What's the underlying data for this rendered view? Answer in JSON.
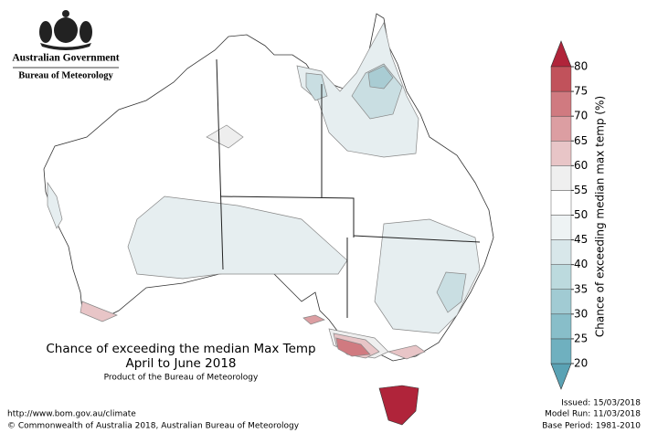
{
  "header": {
    "government": "Australian Government",
    "agency": "Bureau of Meteorology"
  },
  "map": {
    "title": "Chance of exceeding the median Max Temp",
    "period": "April to June 2018",
    "product": "Product of the Bureau of Meteorology"
  },
  "footer": {
    "url": "http://www.bom.gov.au/climate",
    "copyright": "© Commonwealth of Australia 2018, Australian Bureau of Meteorology",
    "issued": "Issued: 15/03/2018",
    "model_run": "Model Run: 11/03/2018",
    "base_period": "Base Period: 1981-2010"
  },
  "legend": {
    "label": "Chance of exceeding median max temp (%)",
    "ticks": [
      20,
      25,
      30,
      35,
      40,
      45,
      50,
      55,
      60,
      65,
      70,
      75,
      80
    ],
    "colors": [
      "#6fb0bf",
      "#88bec9",
      "#a1cbd3",
      "#bcdade",
      "#d8e7ea",
      "#eef3f4",
      "#ffffff",
      "#efefef",
      "#e8c5c7",
      "#dc9ea2",
      "#d07a80",
      "#c1525b"
    ],
    "under_color": "#5aa2b4",
    "over_color": "#b0243a"
  }
}
